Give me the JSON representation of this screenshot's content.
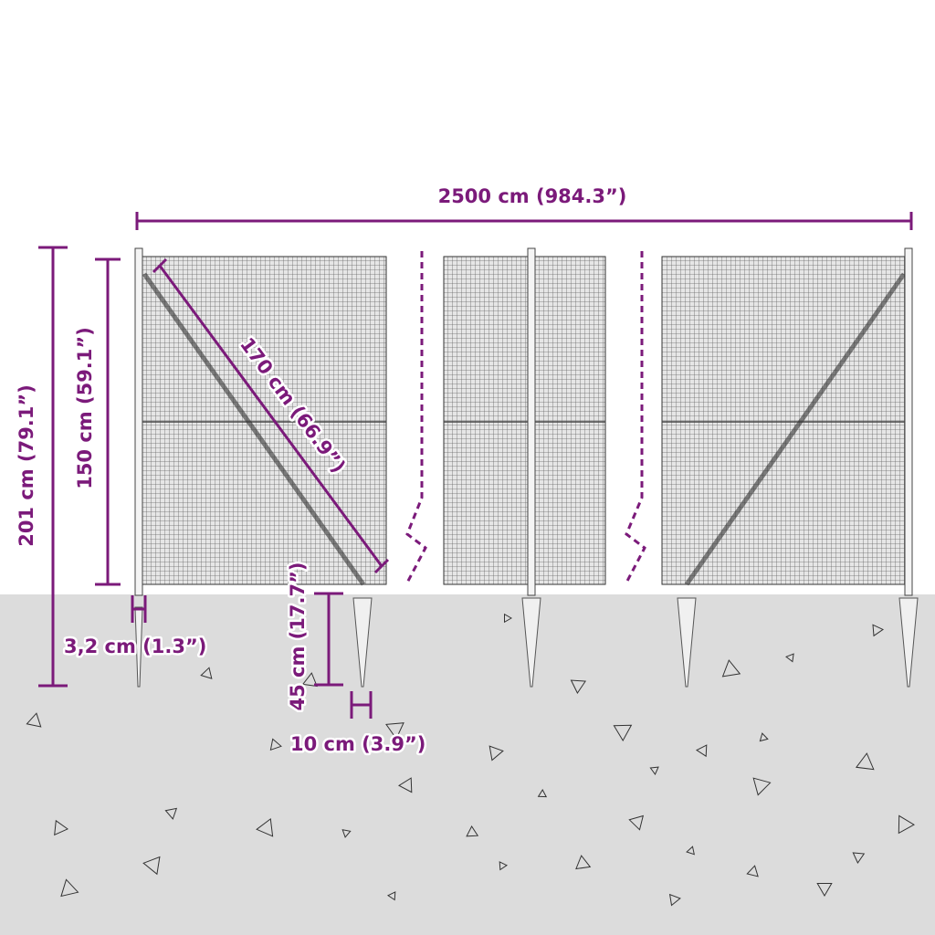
{
  "colors": {
    "dimension": "#7b1a7a",
    "ground": "#dcdcdc",
    "mesh": "#555555"
  },
  "labels": {
    "total_length": "2500 cm (984.3”)",
    "total_height": "201 cm (79.1”)",
    "fence_height": "150 cm (59.1”)",
    "brace_length": "170 cm (66.9”)",
    "post_diameter": "3,2 cm (1.3”)",
    "spike_length": "45 cm (17.7”)",
    "spike_width": "10 cm (3.9”)"
  }
}
